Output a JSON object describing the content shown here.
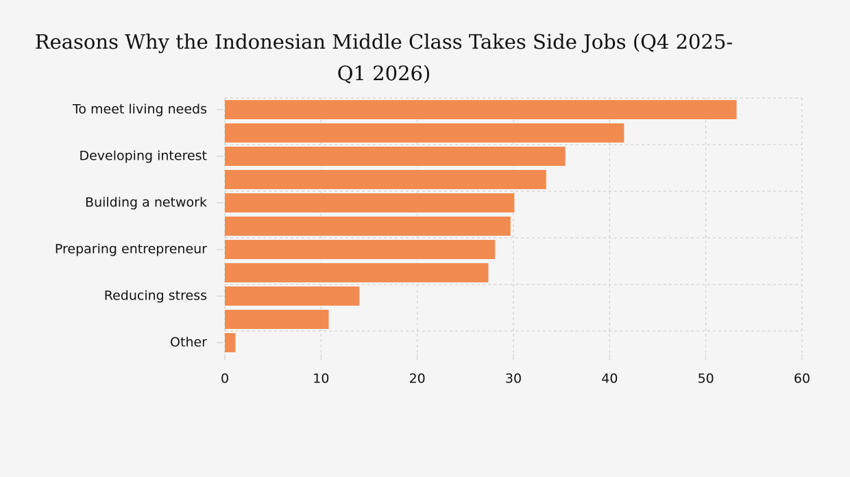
{
  "chart_data": {
    "type": "hbar",
    "title": "Reasons Why the Indonesian Middle Class Takes Side Jobs (Q4 2025-Q1 2026)",
    "categories": [
      "To meet living needs",
      null,
      "Developing interest",
      null,
      "Building a network",
      null,
      "Preparing entrepreneur",
      null,
      "Reducing stress",
      null,
      "Other"
    ],
    "values": [
      53.2,
      41.5,
      35.4,
      33.4,
      30.1,
      29.7,
      28.1,
      27.4,
      14.0,
      10.8,
      1.1
    ],
    "color": "#f28b50",
    "xlim": [
      0,
      60
    ],
    "xticks": [
      0,
      10,
      20,
      30,
      40,
      50,
      60
    ],
    "grid": true
  }
}
